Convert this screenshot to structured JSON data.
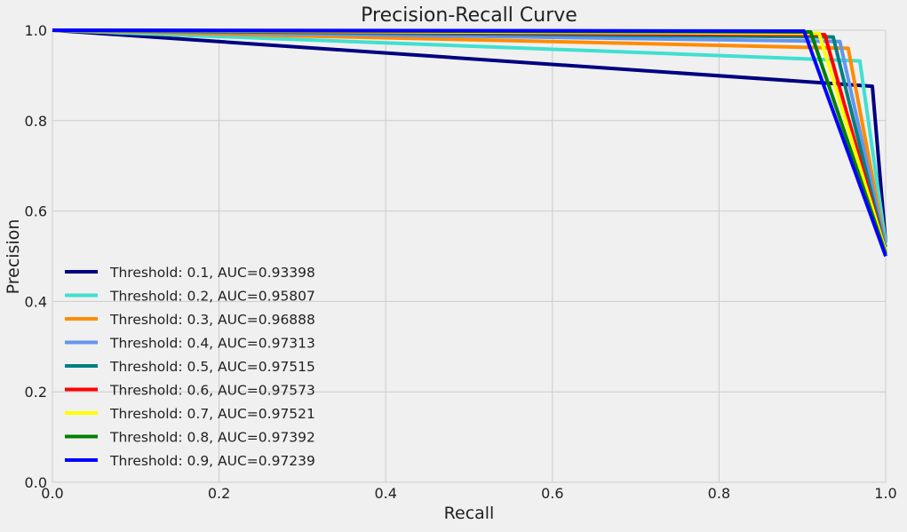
{
  "chart_data": {
    "type": "line",
    "title": "Precision-Recall Curve",
    "xlabel": "Recall",
    "ylabel": "Precision",
    "xlim": [
      0.0,
      1.0
    ],
    "ylim": [
      0.0,
      1.0
    ],
    "grid": true,
    "legend_position": "lower-left",
    "x_ticks": [
      0.0,
      0.2,
      0.4,
      0.6,
      0.8,
      1.0
    ],
    "x_tick_labels": [
      "0.0",
      "0.2",
      "0.4",
      "0.6",
      "0.8",
      "1.0"
    ],
    "y_ticks": [
      0.0,
      0.2,
      0.4,
      0.6,
      0.8,
      1.0
    ],
    "y_tick_labels": [
      "0.0",
      "0.2",
      "0.4",
      "0.6",
      "0.8",
      "1.0"
    ],
    "series": [
      {
        "name": "Threshold: 0.1, AUC=0.93398",
        "color": "#000080",
        "x": [
          0.0,
          0.984,
          1.0
        ],
        "y": [
          1.0,
          0.876,
          0.53
        ]
      },
      {
        "name": "Threshold: 0.2, AUC=0.95807",
        "color": "#40e0d0",
        "x": [
          0.0,
          0.969,
          1.0
        ],
        "y": [
          1.0,
          0.932,
          0.53
        ]
      },
      {
        "name": "Threshold: 0.3, AUC=0.96888",
        "color": "#ff8c00",
        "x": [
          0.0,
          0.955,
          1.0
        ],
        "y": [
          1.0,
          0.96,
          0.52
        ]
      },
      {
        "name": "Threshold: 0.4, AUC=0.97313",
        "color": "#6495ed",
        "x": [
          0.0,
          0.945,
          1.0
        ],
        "y": [
          1.0,
          0.975,
          0.52
        ]
      },
      {
        "name": "Threshold: 0.5, AUC=0.97515",
        "color": "#008080",
        "x": [
          0.0,
          0.937,
          1.0
        ],
        "y": [
          1.0,
          0.985,
          0.51
        ]
      },
      {
        "name": "Threshold: 0.6, AUC=0.97573",
        "color": "#ff0000",
        "x": [
          0.0,
          0.927,
          1.0
        ],
        "y": [
          1.0,
          0.99,
          0.51
        ]
      },
      {
        "name": "Threshold: 0.7, AUC=0.97521",
        "color": "#ffff00",
        "x": [
          0.0,
          0.92,
          1.0
        ],
        "y": [
          1.0,
          0.993,
          0.51
        ]
      },
      {
        "name": "Threshold: 0.8, AUC=0.97392",
        "color": "#008000",
        "x": [
          0.0,
          0.91,
          1.0
        ],
        "y": [
          1.0,
          0.996,
          0.505
        ]
      },
      {
        "name": "Threshold: 0.9, AUC=0.97239",
        "color": "#0000ff",
        "x": [
          0.0,
          0.902,
          1.0
        ],
        "y": [
          1.0,
          0.998,
          0.5
        ]
      }
    ]
  }
}
